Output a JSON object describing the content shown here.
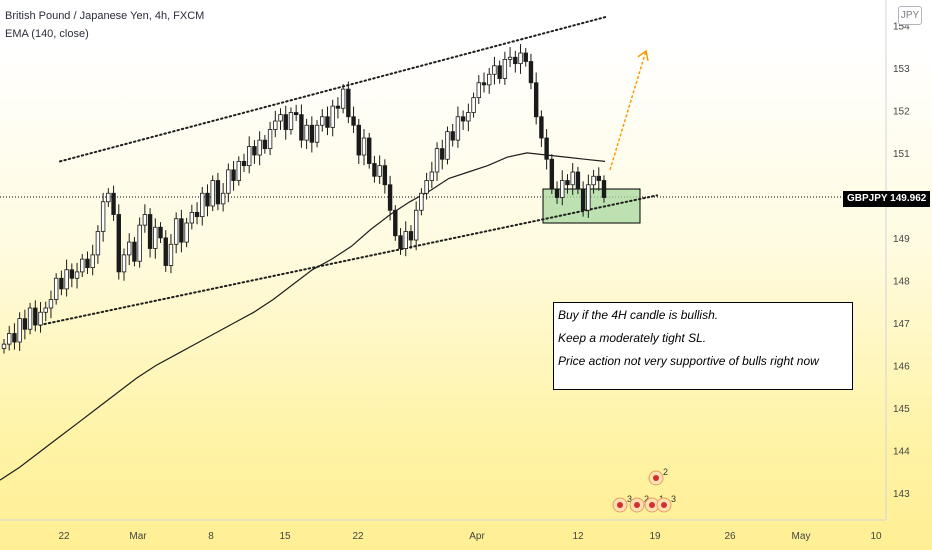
{
  "header": {
    "title": "British Pound / Japanese Yen, 4h, FXCM",
    "indicator": "EMA (140, close)",
    "currency_badge": "JPY"
  },
  "price_tag": "GBPJPY  149.962",
  "note": {
    "lines": [
      "Buy if the 4H candle is bullish.",
      "Keep a moderately tight SL.",
      "Price action not very supportive of bulls right now"
    ]
  },
  "events": [
    {
      "label": "3"
    },
    {
      "label": "2"
    },
    {
      "label": "1"
    },
    {
      "label": "3"
    },
    {
      "label": "2"
    }
  ],
  "colors": {
    "candle": "#1a1a1a",
    "ema": "#1e1e1e",
    "trendline": "#1e1e1e",
    "box_fill": "#a8d8a0",
    "box_stroke": "#000000",
    "arrow": "#ff9800",
    "axis_text": "#444444",
    "price_tag_bg": "#000000"
  },
  "chart_data": {
    "type": "candlestick",
    "symbol": "GBPJPY",
    "timeframe": "4h",
    "ylim": [
      142.6,
      154.6
    ],
    "yticks": [
      143,
      144,
      145,
      146,
      147,
      148,
      149,
      150,
      151,
      152,
      153,
      154
    ],
    "xticks": [
      "22",
      "Mar",
      "8",
      "15",
      "22",
      "Apr",
      "12",
      "19",
      "26",
      "May",
      "10"
    ],
    "last_price": 149.962,
    "closes": [
      146.5,
      146.75,
      146.55,
      147.1,
      146.85,
      147.35,
      146.95,
      147.25,
      147.35,
      147.55,
      148.05,
      147.8,
      148.25,
      148.05,
      148.2,
      148.5,
      148.3,
      148.6,
      149.15,
      149.85,
      150.05,
      149.55,
      148.2,
      148.6,
      148.9,
      148.45,
      149.3,
      149.55,
      148.75,
      149.25,
      149.0,
      148.35,
      148.85,
      149.45,
      148.9,
      149.35,
      149.6,
      149.5,
      150.05,
      149.75,
      150.35,
      149.8,
      150.05,
      150.6,
      150.35,
      150.8,
      150.7,
      151.15,
      150.95,
      151.3,
      151.1,
      151.55,
      151.75,
      151.9,
      151.55,
      151.95,
      151.9,
      151.3,
      151.65,
      151.25,
      151.65,
      151.85,
      151.6,
      152.1,
      152.05,
      152.5,
      151.85,
      151.65,
      150.95,
      151.35,
      150.75,
      150.45,
      150.7,
      150.25,
      149.65,
      149.05,
      148.75,
      149.15,
      148.95,
      149.65,
      150.05,
      150.35,
      150.55,
      151.1,
      150.85,
      151.5,
      151.3,
      151.85,
      151.75,
      151.95,
      152.3,
      152.65,
      152.6,
      152.85,
      153.05,
      152.75,
      153.2,
      153.25,
      153.1,
      153.35,
      153.15,
      152.65,
      151.85,
      151.35,
      150.85,
      150.15,
      149.95,
      150.35,
      150.25,
      150.55,
      150.15,
      149.65,
      150.25,
      150.45,
      150.35,
      149.95
    ],
    "ema_140": [
      143.3,
      143.6,
      143.95,
      144.3,
      144.65,
      145.0,
      145.35,
      145.7,
      146.0,
      146.25,
      146.5,
      146.75,
      147.0,
      147.25,
      147.55,
      147.9,
      148.25,
      148.5,
      148.8,
      149.2,
      149.55,
      149.85,
      150.1,
      150.4,
      150.55,
      150.7,
      150.9,
      151.0,
      150.95,
      150.9,
      150.85,
      150.8
    ],
    "trendlines": [
      {
        "style": "dotted",
        "from": [
          "Feb 17",
          150.8
        ],
        "to": [
          "Apr 18",
          154.2
        ]
      },
      {
        "style": "dotted",
        "from": [
          "Feb 18",
          146.95
        ],
        "to": [
          "Apr 20",
          150.0
        ]
      }
    ],
    "zone": {
      "from": "Apr 9",
      "to": "Apr 18",
      "low": 149.35,
      "high": 150.15
    },
    "projection_arrow": {
      "from": [
        "Apr 16",
        150.6
      ],
      "to": [
        "Apr 19",
        153.4
      ]
    }
  }
}
